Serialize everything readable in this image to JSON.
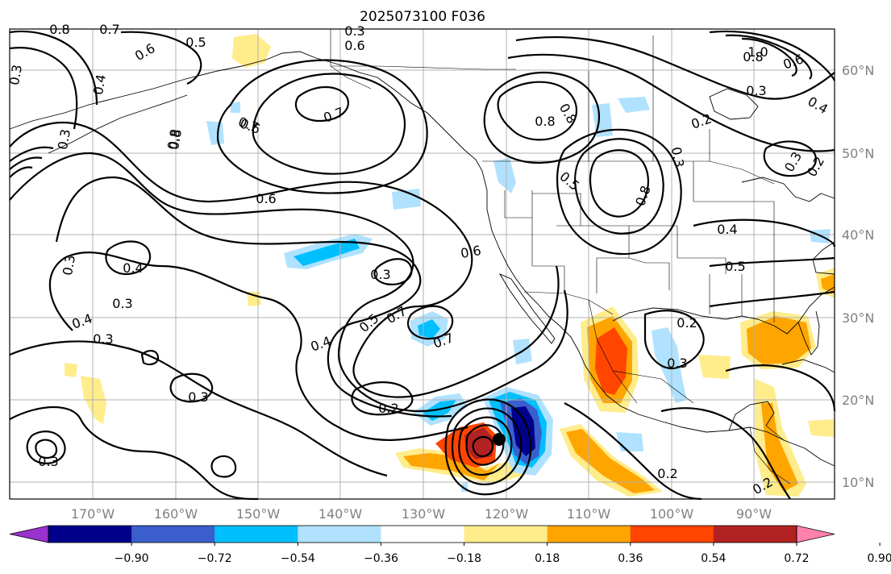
{
  "title": "2025073100 F036",
  "lat_labels": [
    "60°N",
    "50°N",
    "40°N",
    "30°N",
    "20°N",
    "10°N"
  ],
  "lon_labels": [
    "170°W",
    "160°W",
    "150°W",
    "140°W",
    "130°W",
    "120°W",
    "110°W",
    "100°W",
    "90°W"
  ],
  "colorbar": {
    "colors": [
      "#9a32cd",
      "#00008b",
      "#3a5fcd",
      "#00bfff",
      "#b0e2ff",
      "#ffffff",
      "#ffec8b",
      "#ffa500",
      "#ff4500",
      "#b22222",
      "#ff82ab"
    ],
    "tick_labels": [
      "−0.90",
      "−0.72",
      "−0.54",
      "−0.36",
      "−0.18",
      "0.18",
      "0.36",
      "0.54",
      "0.72",
      "0.90"
    ]
  },
  "contour_labels": [
    {
      "text": "0.8"
    },
    {
      "text": "0.7"
    },
    {
      "text": "0.6"
    },
    {
      "text": "0.5"
    },
    {
      "text": "0.3"
    },
    {
      "text": "0.4"
    },
    {
      "text": "0.6"
    },
    {
      "text": "0.8"
    },
    {
      "text": "0.7"
    },
    {
      "text": "0.8"
    },
    {
      "text": "0.7"
    },
    {
      "text": "0.6"
    },
    {
      "text": "0.3"
    },
    {
      "text": "0.4"
    },
    {
      "text": "0.3"
    },
    {
      "text": "0.4"
    },
    {
      "text": "0.3"
    },
    {
      "text": "0.3"
    },
    {
      "text": "0.3"
    },
    {
      "text": "0.3"
    },
    {
      "text": "0.6"
    },
    {
      "text": "0.3"
    },
    {
      "text": "0.6"
    },
    {
      "text": "0.5"
    },
    {
      "text": "0.4"
    },
    {
      "text": "0.7"
    },
    {
      "text": "0.7"
    },
    {
      "text": "0.2"
    },
    {
      "text": "0.8"
    },
    {
      "text": "0.8"
    },
    {
      "text": "0.5"
    },
    {
      "text": "0.8"
    },
    {
      "text": "0.3"
    },
    {
      "text": "0.2"
    },
    {
      "text": "1.0"
    },
    {
      "text": "0.8"
    },
    {
      "text": "0.6"
    },
    {
      "text": "0.3"
    },
    {
      "text": "0.4"
    },
    {
      "text": "0.3"
    },
    {
      "text": "0.2"
    },
    {
      "text": "0.4"
    },
    {
      "text": "0.5"
    },
    {
      "text": "0.2"
    },
    {
      "text": "0.3"
    },
    {
      "text": "0.2"
    },
    {
      "text": "0.2"
    },
    {
      "text": "0.3"
    }
  ]
}
